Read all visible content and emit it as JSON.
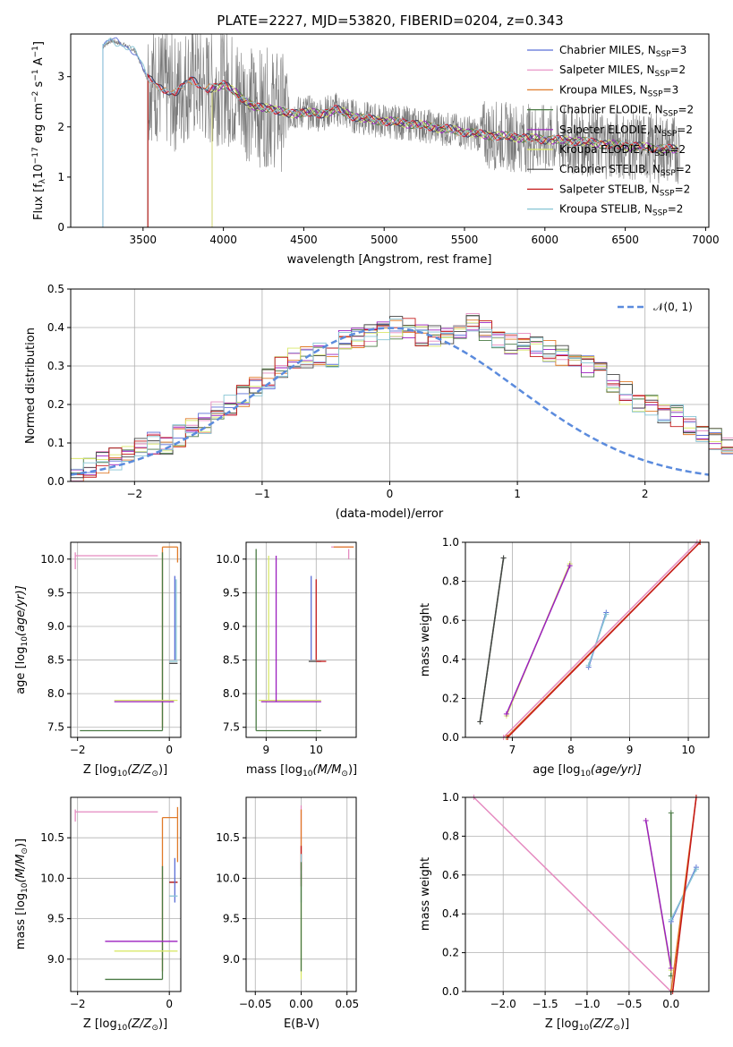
{
  "figure_title": "PLATE=2227, MJD=53820, FIBERID=0204, z=0.343",
  "colors": {
    "chabrier_miles": "#5b6fd6",
    "salpeter_miles": "#e58ac0",
    "kroupa_miles": "#e07b2a",
    "chabrier_elodie": "#4a7a44",
    "salpeter_elodie": "#9b1fbf",
    "kroupa_elodie": "#d9e86a",
    "chabrier_stelib": "#444444",
    "salpeter_stelib": "#c41a1a",
    "kroupa_stelib": "#86c4d4",
    "data": "#7a7a7a",
    "normal": "#5b8bdd"
  },
  "chart_data": [
    {
      "type": "line",
      "title": "PLATE=2227, MJD=53820, FIBERID=0204, z=0.343",
      "xlabel": "wavelength [Angstrom, rest frame]",
      "ylabel_main": "Flux [f",
      "ylabel_sub1": "λ",
      "ylabel_mid": "10",
      "ylabel_sup1": "−17",
      "ylabel_rest": " erg cm",
      "ylabel_sup2": "−2",
      "ylabel_rest2": " s",
      "ylabel_sup3": "−1",
      "ylabel_rest3": " A",
      "ylabel_sup4": "−1",
      "ylabel_end": "]",
      "xlim": [
        3050,
        7020
      ],
      "ylim": [
        0,
        3.85
      ],
      "xticks": [
        "3500",
        "4000",
        "4500",
        "5000",
        "5500",
        "6000",
        "6500",
        "7000"
      ],
      "yticks": [
        "0",
        "1",
        "2",
        "3"
      ],
      "grid": false,
      "legend_position": "right",
      "series_model": [
        {
          "label": "Chabrier MILES, N",
          "sub": "SSP",
          "val": "=3",
          "color_key": "chabrier_miles"
        },
        {
          "label": "Salpeter MILES, N",
          "sub": "SSP",
          "val": "=2",
          "color_key": "salpeter_miles"
        },
        {
          "label": "Kroupa MILES, N",
          "sub": "SSP",
          "val": "=3",
          "color_key": "kroupa_miles"
        },
        {
          "label": "Chabrier ELODIE, N",
          "sub": "SSP",
          "val": "=2",
          "color_key": "chabrier_elodie"
        },
        {
          "label": "Salpeter ELODIE, N",
          "sub": "SSP",
          "val": "=2",
          "color_key": "salpeter_elodie"
        },
        {
          "label": "Kroupa ELODIE, N",
          "sub": "SSP",
          "val": "=2",
          "color_key": "kroupa_elodie"
        },
        {
          "label": "Chabrier STELIB, N",
          "sub": "SSP",
          "val": "=2",
          "color_key": "chabrier_stelib"
        },
        {
          "label": "Salpeter STELIB, N",
          "sub": "SSP",
          "val": "=2",
          "color_key": "salpeter_stelib"
        },
        {
          "label": "Kroupa STELIB, N",
          "sub": "SSP",
          "val": "=2",
          "color_key": "kroupa_stelib"
        }
      ],
      "model_start_wavelengths": [
        3250,
        3530,
        3530,
        3930,
        3930,
        3930,
        3530,
        3530,
        3250
      ],
      "continuum": [
        [
          3250,
          3.6
        ],
        [
          3300,
          3.72
        ],
        [
          3380,
          3.64
        ],
        [
          3450,
          3.52
        ],
        [
          3530,
          2.95
        ],
        [
          3600,
          2.82
        ],
        [
          3700,
          2.65
        ],
        [
          3800,
          2.95
        ],
        [
          3900,
          2.75
        ],
        [
          4000,
          2.85
        ],
        [
          4100,
          2.62
        ],
        [
          4200,
          2.38
        ],
        [
          4300,
          2.38
        ],
        [
          4400,
          2.25
        ],
        [
          4500,
          2.3
        ],
        [
          4600,
          2.25
        ],
        [
          4700,
          2.35
        ],
        [
          4800,
          2.22
        ],
        [
          4900,
          2.15
        ],
        [
          5000,
          2.12
        ],
        [
          5200,
          2.05
        ],
        [
          5400,
          1.95
        ],
        [
          5600,
          1.85
        ],
        [
          5800,
          1.8
        ],
        [
          6000,
          1.75
        ],
        [
          6200,
          1.72
        ],
        [
          6400,
          1.65
        ],
        [
          6600,
          1.6
        ],
        [
          6800,
          1.55
        ]
      ]
    },
    {
      "type": "bar",
      "xlabel": "(data-model)/error",
      "ylabel": "Normed distribution",
      "xlim": [
        -2.5,
        2.5
      ],
      "ylim": [
        0,
        0.5
      ],
      "xticks": [
        "−2",
        "−1",
        "0",
        "1",
        "2"
      ],
      "yticks": [
        "0.0",
        "0.1",
        "0.2",
        "0.3",
        "0.4",
        "0.5"
      ],
      "grid": true,
      "legend_position": "top-right",
      "legend_label": "𝒩(0, 1)",
      "bin_width": 0.1,
      "hist_base": [
        0.03,
        0.04,
        0.05,
        0.06,
        0.07,
        0.09,
        0.1,
        0.1,
        0.12,
        0.14,
        0.15,
        0.18,
        0.2,
        0.22,
        0.25,
        0.27,
        0.3,
        0.32,
        0.32,
        0.33,
        0.32,
        0.37,
        0.37,
        0.38,
        0.39,
        0.4,
        0.4,
        0.38,
        0.38,
        0.37,
        0.38,
        0.41,
        0.39,
        0.37,
        0.36,
        0.36,
        0.35,
        0.34,
        0.33,
        0.32,
        0.3,
        0.28,
        0.25,
        0.23,
        0.21,
        0.2,
        0.18,
        0.17,
        0.15,
        0.13,
        0.11,
        0.1,
        0.09,
        0.1,
        0.12,
        0.1,
        0.08,
        0.06,
        0.05,
        0.04,
        0.05,
        0.04,
        0.03,
        0.04,
        0.03,
        0.03,
        0.02,
        0.03,
        0.02,
        0.02
      ]
    },
    {
      "type": "scatter",
      "xlabel_main": "Z [log",
      "xlabel_sub": "10",
      "xlabel_rest": "(Z/Z",
      "xlabel_sub2": "⊙",
      "xlabel_end": ")]",
      "ylabel_main": "age  [log",
      "ylabel_sub": "10",
      "ylabel_rest": "(age/yr)]",
      "xlim": [
        -2.15,
        0.25
      ],
      "ylim": [
        7.35,
        10.25
      ],
      "xticks": [
        "−2",
        "0"
      ],
      "yticks": [
        "7.5",
        "8.0",
        "8.5",
        "9.0",
        "9.5",
        "10.0"
      ],
      "grid": true
    },
    {
      "type": "scatter",
      "xlabel_main": "mass [log",
      "xlabel_sub": "10",
      "xlabel_rest": "(M/M",
      "xlabel_sub2": "⊙",
      "xlabel_end": ")]",
      "xlim": [
        8.6,
        10.8
      ],
      "ylim": [
        7.35,
        10.25
      ],
      "xticks": [
        "9",
        "10"
      ],
      "yticks": [
        "7.5",
        "8.0",
        "8.5",
        "9.0",
        "9.5",
        "10.0"
      ],
      "grid": true
    },
    {
      "type": "line",
      "xlabel_main": "age  [log",
      "xlabel_sub": "10",
      "xlabel_rest": "(age/yr)]",
      "ylabel": "mass weight",
      "xlim": [
        6.2,
        10.35
      ],
      "ylim": [
        0,
        1.0
      ],
      "xticks": [
        "7",
        "8",
        "9",
        "10"
      ],
      "yticks": [
        "0.0",
        "0.2",
        "0.4",
        "0.6",
        "0.8",
        "1.0"
      ],
      "grid": true,
      "series": [
        {
          "color_key": "chabrier_elodie",
          "x": [
            6.45,
            6.85
          ],
          "y": [
            0.08,
            0.92
          ]
        },
        {
          "color_key": "chabrier_stelib",
          "x": [
            6.45,
            6.85
          ],
          "y": [
            0.08,
            0.92
          ]
        },
        {
          "color_key": "kroupa_elodie",
          "x": [
            6.9,
            7.98
          ],
          "y": [
            0.11,
            0.89
          ]
        },
        {
          "color_key": "salpeter_elodie",
          "x": [
            6.9,
            7.98
          ],
          "y": [
            0.12,
            0.88
          ]
        },
        {
          "color_key": "chabrier_miles",
          "x": [
            8.3,
            8.6
          ],
          "y": [
            0.36,
            0.64
          ]
        },
        {
          "color_key": "kroupa_stelib",
          "x": [
            8.3,
            8.6
          ],
          "y": [
            0.37,
            0.63
          ]
        },
        {
          "color_key": "salpeter_miles",
          "x": [
            6.85,
            10.15
          ],
          "y": [
            0.0,
            1.0
          ]
        },
        {
          "color_key": "kroupa_miles",
          "x": [
            6.9,
            10.2
          ],
          "y": [
            0.0,
            1.0
          ]
        },
        {
          "color_key": "salpeter_stelib",
          "x": [
            6.92,
            10.2
          ],
          "y": [
            0.0,
            1.0
          ]
        }
      ]
    },
    {
      "type": "scatter",
      "xlabel_main": "Z [log",
      "xlabel_sub": "10",
      "xlabel_rest": "(Z/Z",
      "xlabel_sub2": "⊙",
      "xlabel_end": ")]",
      "ylabel_main": "mass [log",
      "ylabel_sub": "10",
      "ylabel_rest": "(M/M",
      "ylabel_sub2": "⊙",
      "ylabel_end": ")]",
      "xlim": [
        -2.15,
        0.25
      ],
      "ylim": [
        8.6,
        11.0
      ],
      "xticks": [
        "−2",
        "0"
      ],
      "yticks": [
        "9.0",
        "9.5",
        "10.0",
        "10.5"
      ],
      "grid": true
    },
    {
      "type": "scatter",
      "xlabel": "E(B-V)",
      "xlim": [
        -0.06,
        0.06
      ],
      "ylim": [
        8.6,
        11.0
      ],
      "xticks": [
        "−0.05",
        "0.00",
        "0.05"
      ],
      "yticks": [
        "9.0",
        "9.5",
        "10.0",
        "10.5"
      ],
      "grid": true
    },
    {
      "type": "line",
      "xlabel_main": "Z [log",
      "xlabel_sub": "10",
      "xlabel_rest": "(Z/Z",
      "xlabel_sub2": "⊙",
      "xlabel_end": ")]",
      "ylabel": "mass weight",
      "xlim": [
        -2.45,
        0.45
      ],
      "ylim": [
        0,
        1.0
      ],
      "xticks": [
        "−2.0",
        "−1.5",
        "−1.0",
        "−0.5",
        "0.0"
      ],
      "yticks": [
        "0.0",
        "0.2",
        "0.4",
        "0.6",
        "0.8",
        "1.0"
      ],
      "grid": true,
      "series": [
        {
          "color_key": "chabrier_elodie",
          "x": [
            0.0,
            0.0
          ],
          "y": [
            0.08,
            0.92
          ]
        },
        {
          "color_key": "kroupa_elodie",
          "x": [
            -0.3,
            0.0
          ],
          "y": [
            0.88,
            0.11
          ]
        },
        {
          "color_key": "salpeter_elodie",
          "x": [
            -0.3,
            0.0
          ],
          "y": [
            0.88,
            0.12
          ]
        },
        {
          "color_key": "chabrier_miles",
          "x": [
            0.0,
            0.3
          ],
          "y": [
            0.36,
            0.64
          ]
        },
        {
          "color_key": "kroupa_stelib",
          "x": [
            0.0,
            0.3
          ],
          "y": [
            0.37,
            0.63
          ]
        },
        {
          "color_key": "salpeter_miles",
          "x": [
            -2.35,
            0.0
          ],
          "y": [
            1.0,
            0.0
          ]
        },
        {
          "color_key": "kroupa_miles",
          "x": [
            0.0,
            0.3
          ],
          "y": [
            0.0,
            1.0
          ]
        },
        {
          "color_key": "salpeter_stelib",
          "x": [
            0.02,
            0.3
          ],
          "y": [
            0.0,
            1.0
          ]
        }
      ]
    }
  ]
}
